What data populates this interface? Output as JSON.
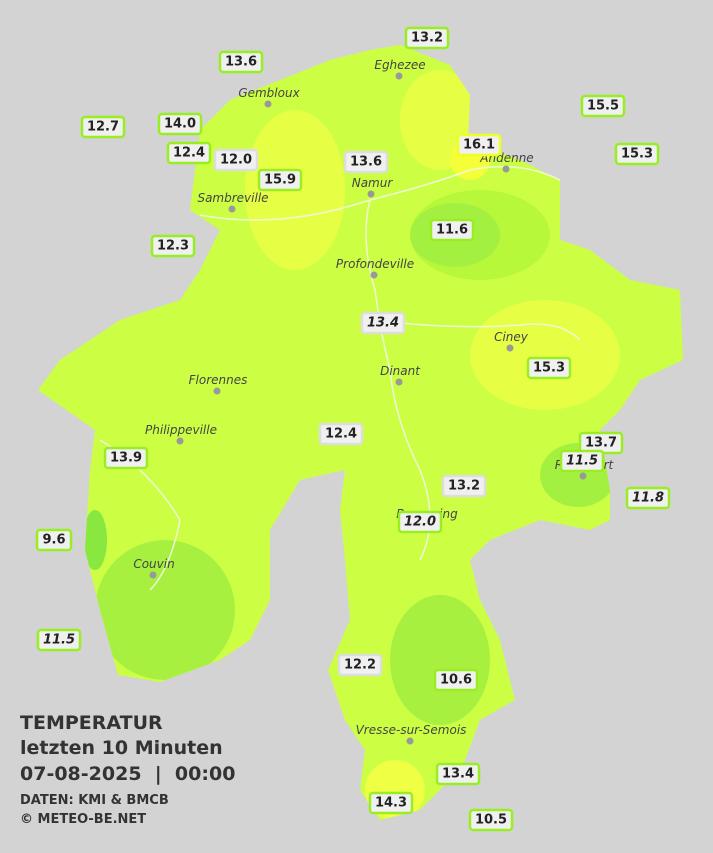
{
  "title": {
    "line1": "TEMPERATUR",
    "line2": "letzten 10 Minuten",
    "line3": "07-08-2025  |  00:00",
    "source": "DATEN: KMI & BMCB",
    "copyright": "© METEO-BE.NET"
  },
  "places": [
    "Eghezee",
    "Gembloux",
    "Andenne",
    "Namur",
    "Sambreville",
    "Profondeville",
    "Ciney",
    "Dinant",
    "Florennes",
    "Philippeville",
    "Rochefort",
    "Beauraing",
    "Couvin",
    "Vresse-sur-Semois"
  ],
  "readings": [
    "13.2",
    "13.6",
    "12.7",
    "14.0",
    "15.5",
    "16.1",
    "15.3",
    "12.4",
    "12.0",
    "13.6",
    "15.9",
    "11.6",
    "12.3",
    "13.4",
    "15.3",
    "12.4",
    "13.7",
    "11.5",
    "13.9",
    "13.2",
    "11.8",
    "12.0",
    "9.6",
    "11.5",
    "12.2",
    "10.6",
    "13.4",
    "14.3",
    "10.5"
  ]
}
